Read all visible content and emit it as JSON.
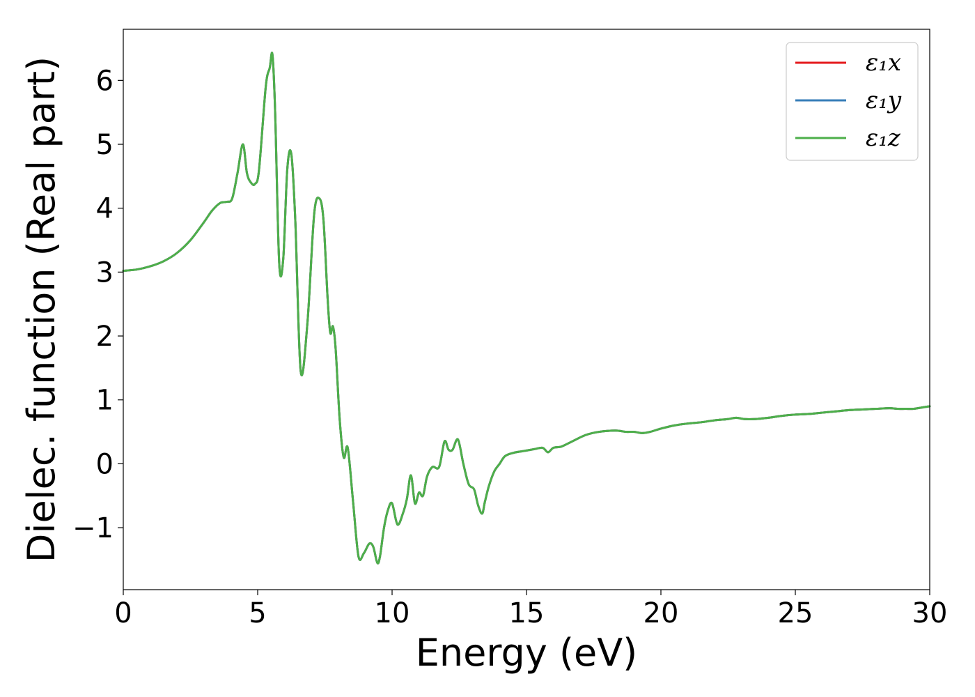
{
  "chart_data": {
    "type": "line",
    "title": "",
    "xlabel": "Energy (eV)",
    "ylabel": "Dielec. function (Real part)",
    "xlim": [
      0,
      30
    ],
    "ylim": [
      -1.97,
      6.8
    ],
    "xticks": [
      0,
      5,
      10,
      15,
      20,
      25,
      30
    ],
    "xtick_labels": [
      "0",
      "5",
      "10",
      "15",
      "20",
      "25",
      "30"
    ],
    "yticks": [
      -1,
      0,
      1,
      2,
      3,
      4,
      5,
      6
    ],
    "ytick_labels": [
      "−1",
      "0",
      "1",
      "2",
      "3",
      "4",
      "5",
      "6"
    ],
    "grid": false,
    "legend_position": "top-right",
    "x": [
      0,
      0.5,
      1,
      1.5,
      2,
      2.5,
      3,
      3.3,
      3.6,
      3.85,
      4.05,
      4.25,
      4.45,
      4.6,
      4.75,
      4.9,
      5.05,
      5.3,
      5.45,
      5.55,
      5.65,
      5.8,
      5.95,
      6.1,
      6.25,
      6.4,
      6.6,
      6.85,
      7.1,
      7.3,
      7.45,
      7.6,
      7.7,
      7.8,
      7.9,
      8.05,
      8.2,
      8.35,
      8.55,
      8.75,
      8.95,
      9.15,
      9.3,
      9.45,
      9.55,
      9.7,
      9.85,
      10.0,
      10.2,
      10.4,
      10.55,
      10.7,
      10.85,
      11.0,
      11.15,
      11.3,
      11.5,
      11.75,
      11.95,
      12.1,
      12.25,
      12.45,
      12.65,
      12.85,
      13.05,
      13.2,
      13.35,
      13.45,
      13.6,
      13.8,
      14.0,
      14.2,
      14.5,
      14.9,
      15.3,
      15.6,
      15.8,
      16.0,
      16.3,
      16.7,
      17.2,
      17.7,
      18.3,
      18.7,
      19.0,
      19.3,
      19.6,
      20.0,
      20.5,
      21.0,
      21.5,
      22.0,
      22.5,
      22.8,
      23.1,
      23.5,
      24.0,
      24.5,
      25.0,
      25.5,
      26.0,
      26.5,
      27.0,
      27.5,
      28.0,
      28.5,
      28.8,
      29.1,
      29.4,
      29.7,
      30.0
    ],
    "series": [
      {
        "name": "ε₁x",
        "color": "#e41a1c",
        "y": [
          3.02,
          3.04,
          3.09,
          3.17,
          3.3,
          3.5,
          3.78,
          3.96,
          4.08,
          4.1,
          4.15,
          4.55,
          5.0,
          4.55,
          4.4,
          4.38,
          4.6,
          5.9,
          6.2,
          6.4,
          5.5,
          3.15,
          3.2,
          4.6,
          4.85,
          3.8,
          1.45,
          2.2,
          3.9,
          4.15,
          3.8,
          2.6,
          2.05,
          2.15,
          1.8,
          0.7,
          0.1,
          0.25,
          -0.6,
          -1.45,
          -1.4,
          -1.25,
          -1.3,
          -1.55,
          -1.45,
          -1.0,
          -0.72,
          -0.62,
          -0.95,
          -0.78,
          -0.55,
          -0.18,
          -0.62,
          -0.45,
          -0.5,
          -0.2,
          -0.05,
          -0.05,
          0.35,
          0.22,
          0.22,
          0.38,
          0.0,
          -0.32,
          -0.4,
          -0.65,
          -0.78,
          -0.6,
          -0.35,
          -0.12,
          0.0,
          0.12,
          0.17,
          0.2,
          0.23,
          0.25,
          0.18,
          0.25,
          0.27,
          0.35,
          0.45,
          0.5,
          0.52,
          0.5,
          0.5,
          0.48,
          0.5,
          0.55,
          0.6,
          0.63,
          0.65,
          0.68,
          0.7,
          0.72,
          0.7,
          0.7,
          0.72,
          0.75,
          0.77,
          0.78,
          0.8,
          0.82,
          0.84,
          0.85,
          0.86,
          0.87,
          0.86,
          0.86,
          0.86,
          0.88,
          0.9
        ]
      },
      {
        "name": "ε₁y",
        "color": "#377eb8",
        "y": [
          3.02,
          3.04,
          3.09,
          3.17,
          3.3,
          3.5,
          3.78,
          3.96,
          4.08,
          4.1,
          4.15,
          4.55,
          5.0,
          4.55,
          4.4,
          4.38,
          4.6,
          5.9,
          6.2,
          6.4,
          5.5,
          3.15,
          3.2,
          4.6,
          4.85,
          3.8,
          1.45,
          2.2,
          3.9,
          4.15,
          3.8,
          2.6,
          2.05,
          2.15,
          1.8,
          0.7,
          0.1,
          0.25,
          -0.6,
          -1.45,
          -1.4,
          -1.25,
          -1.3,
          -1.55,
          -1.45,
          -1.0,
          -0.72,
          -0.62,
          -0.95,
          -0.78,
          -0.55,
          -0.18,
          -0.62,
          -0.45,
          -0.5,
          -0.2,
          -0.05,
          -0.05,
          0.35,
          0.22,
          0.22,
          0.38,
          0.0,
          -0.32,
          -0.4,
          -0.65,
          -0.78,
          -0.6,
          -0.35,
          -0.12,
          0.0,
          0.12,
          0.17,
          0.2,
          0.23,
          0.25,
          0.18,
          0.25,
          0.27,
          0.35,
          0.45,
          0.5,
          0.52,
          0.5,
          0.5,
          0.48,
          0.5,
          0.55,
          0.6,
          0.63,
          0.65,
          0.68,
          0.7,
          0.72,
          0.7,
          0.7,
          0.72,
          0.75,
          0.77,
          0.78,
          0.8,
          0.82,
          0.84,
          0.85,
          0.86,
          0.87,
          0.86,
          0.86,
          0.86,
          0.88,
          0.9
        ]
      },
      {
        "name": "ε₁z",
        "color": "#4daf4a",
        "y": [
          3.02,
          3.04,
          3.09,
          3.17,
          3.3,
          3.5,
          3.78,
          3.96,
          4.08,
          4.1,
          4.15,
          4.55,
          5.0,
          4.55,
          4.4,
          4.38,
          4.6,
          5.9,
          6.2,
          6.4,
          5.5,
          3.15,
          3.2,
          4.6,
          4.85,
          3.8,
          1.45,
          2.2,
          3.9,
          4.15,
          3.8,
          2.6,
          2.05,
          2.15,
          1.8,
          0.7,
          0.1,
          0.25,
          -0.6,
          -1.45,
          -1.4,
          -1.25,
          -1.3,
          -1.55,
          -1.45,
          -1.0,
          -0.72,
          -0.62,
          -0.95,
          -0.78,
          -0.55,
          -0.18,
          -0.62,
          -0.45,
          -0.5,
          -0.2,
          -0.05,
          -0.05,
          0.35,
          0.22,
          0.22,
          0.38,
          0.0,
          -0.32,
          -0.4,
          -0.65,
          -0.78,
          -0.6,
          -0.35,
          -0.12,
          0.0,
          0.12,
          0.17,
          0.2,
          0.23,
          0.25,
          0.18,
          0.25,
          0.27,
          0.35,
          0.45,
          0.5,
          0.52,
          0.5,
          0.5,
          0.48,
          0.5,
          0.55,
          0.6,
          0.63,
          0.65,
          0.68,
          0.7,
          0.72,
          0.7,
          0.7,
          0.72,
          0.75,
          0.77,
          0.78,
          0.8,
          0.82,
          0.84,
          0.85,
          0.86,
          0.87,
          0.86,
          0.86,
          0.86,
          0.88,
          0.9
        ]
      }
    ]
  }
}
